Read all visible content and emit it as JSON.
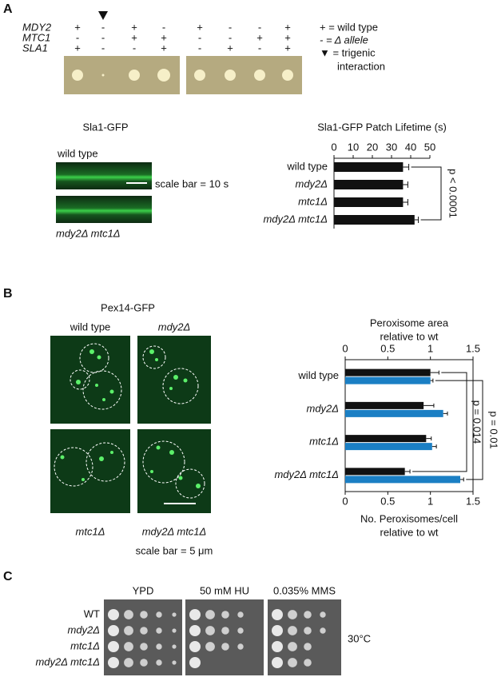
{
  "panel_labels": [
    "A",
    "B",
    "C"
  ],
  "panel_a": {
    "genes": [
      "MDY2",
      "MTC1",
      "SLA1"
    ],
    "genotypes": [
      [
        "+",
        "-",
        "+"
      ],
      [
        "-",
        "-",
        "-"
      ],
      [
        "+",
        "+",
        "-"
      ],
      [
        "-",
        "+",
        "+"
      ],
      [
        "+",
        "-",
        "-"
      ],
      [
        "-",
        "-",
        "+"
      ],
      [
        "-",
        "+",
        "-"
      ],
      [
        "+",
        "+",
        "+"
      ]
    ],
    "legend": [
      "+ = wild type",
      "- = Δ allele",
      "▼ = trigenic",
      "interaction"
    ],
    "kymograph_title": "Sla1-GFP",
    "kymograph_labels": [
      "wild type",
      "mdy2Δ mtc1Δ"
    ],
    "scale_bar": "scale bar = 10 s"
  },
  "panel_b": {
    "image_title": "Pex14-GFP",
    "image_labels": [
      "wild type",
      "mdy2Δ",
      "mtc1Δ",
      "mdy2Δ mtc1Δ"
    ],
    "scale_bar": "scale bar = 5 μm"
  },
  "panel_c": {
    "conditions": [
      "YPD",
      "50 mM HU",
      "0.035% MMS"
    ],
    "strains": [
      "WT",
      "mdy2Δ",
      "mtc1Δ",
      "mdy2Δ mtc1Δ"
    ],
    "temperature": "30°C"
  },
  "chart_data": [
    {
      "type": "bar",
      "title": "Sla1-GFP Patch Lifetime (s)",
      "categories": [
        "wild type",
        "mdy2Δ",
        "mtc1Δ",
        "mdy2Δ mtc1Δ"
      ],
      "values": [
        36,
        36,
        36,
        42
      ],
      "errors": [
        3,
        2.5,
        2.5,
        2
      ],
      "color": "#111111",
      "xlim": [
        0,
        50
      ],
      "xticks": [
        0,
        10,
        20,
        30,
        40,
        50
      ],
      "annotations": [
        "p < 0.0001"
      ]
    },
    {
      "type": "bar",
      "x_label_top": [
        "Peroxisome area",
        "relative to wt"
      ],
      "x_label_bottom": [
        "No. Peroxisomes/cell",
        "relative to wt"
      ],
      "categories": [
        "wild type",
        "mdy2Δ",
        "mtc1Δ",
        "mdy2Δ mtc1Δ"
      ],
      "series": [
        {
          "color": "#111111",
          "values": [
            1.0,
            0.92,
            0.95,
            0.7
          ],
          "errors": [
            0.1,
            0.12,
            0.06,
            0.06
          ]
        },
        {
          "color": "#1b7fc4",
          "values": [
            1.0,
            1.15,
            1.02,
            1.35
          ],
          "errors": [
            0.03,
            0.05,
            0.05,
            0.04
          ]
        }
      ],
      "xlim": [
        0,
        1.5
      ],
      "xticks": [
        0,
        0.5,
        1,
        1.5
      ],
      "annotations": [
        "p = 0.014",
        "p = 0.01"
      ]
    }
  ]
}
